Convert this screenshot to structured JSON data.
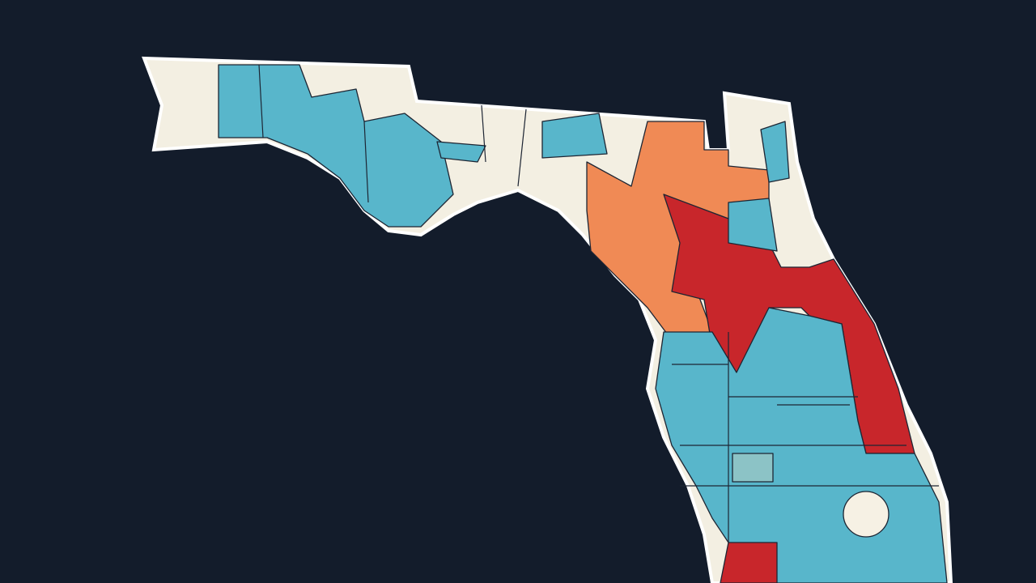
{
  "map": {
    "colors": {
      "background": "#131c2b",
      "outline": "#ffffff",
      "neutral": "#f3efe2",
      "blue": "#58b6cb",
      "light_blue": "#8cc3c6",
      "orange": "#f08a55",
      "red": "#c8262b",
      "lake": "#f6f1e4"
    }
  }
}
